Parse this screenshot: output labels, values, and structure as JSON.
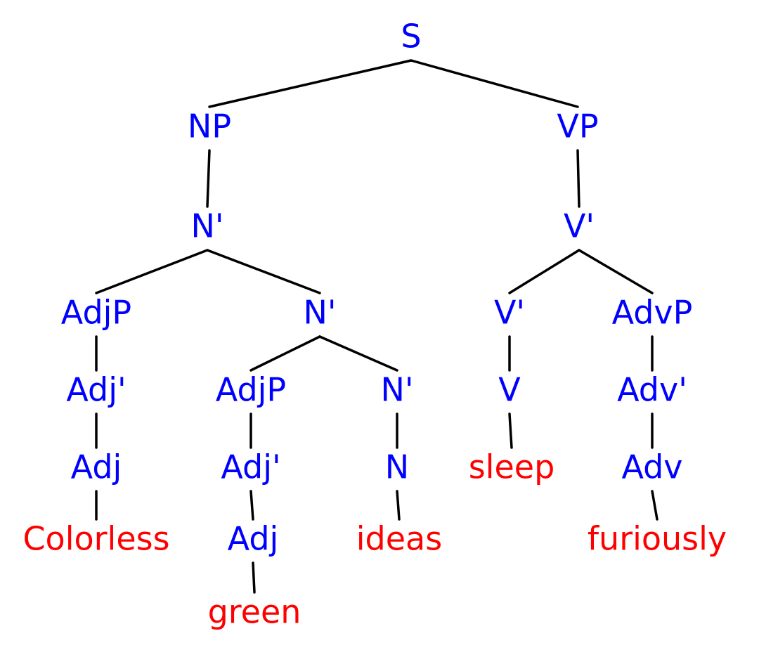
{
  "colors": {
    "category": "#0000ff",
    "word": "#ff0000",
    "edge": "#000000"
  },
  "tree": {
    "label": "S",
    "kind": "category",
    "children": [
      {
        "label": "NP",
        "kind": "category",
        "children": [
          {
            "label": "N'",
            "kind": "category",
            "children": [
              {
                "label": "AdjP",
                "kind": "category",
                "children": [
                  {
                    "label": "Adj'",
                    "kind": "category",
                    "children": [
                      {
                        "label": "Adj",
                        "kind": "category",
                        "children": [
                          {
                            "label": "Colorless",
                            "kind": "word",
                            "children": []
                          }
                        ]
                      }
                    ]
                  }
                ]
              },
              {
                "label": "N'",
                "kind": "category",
                "children": [
                  {
                    "label": "AdjP",
                    "kind": "category",
                    "children": [
                      {
                        "label": "Adj'",
                        "kind": "category",
                        "children": [
                          {
                            "label": "Adj",
                            "kind": "category",
                            "children": [
                              {
                                "label": "green",
                                "kind": "word",
                                "children": []
                              }
                            ]
                          }
                        ]
                      }
                    ]
                  },
                  {
                    "label": "N'",
                    "kind": "category",
                    "children": [
                      {
                        "label": "N",
                        "kind": "category",
                        "children": [
                          {
                            "label": "ideas",
                            "kind": "word",
                            "children": []
                          }
                        ]
                      }
                    ]
                  }
                ]
              }
            ]
          }
        ]
      },
      {
        "label": "VP",
        "kind": "category",
        "children": [
          {
            "label": "V'",
            "kind": "category",
            "children": [
              {
                "label": "V'",
                "kind": "category",
                "children": [
                  {
                    "label": "V",
                    "kind": "category",
                    "children": [
                      {
                        "label": "sleep",
                        "kind": "word",
                        "children": []
                      }
                    ]
                  }
                ]
              },
              {
                "label": "AdvP",
                "kind": "category",
                "children": [
                  {
                    "label": "Adv'",
                    "kind": "category",
                    "children": [
                      {
                        "label": "Adv",
                        "kind": "category",
                        "children": [
                          {
                            "label": "furiously",
                            "kind": "word",
                            "children": []
                          }
                        ]
                      }
                    ]
                  }
                ]
              }
            ]
          }
        ]
      }
    ]
  }
}
